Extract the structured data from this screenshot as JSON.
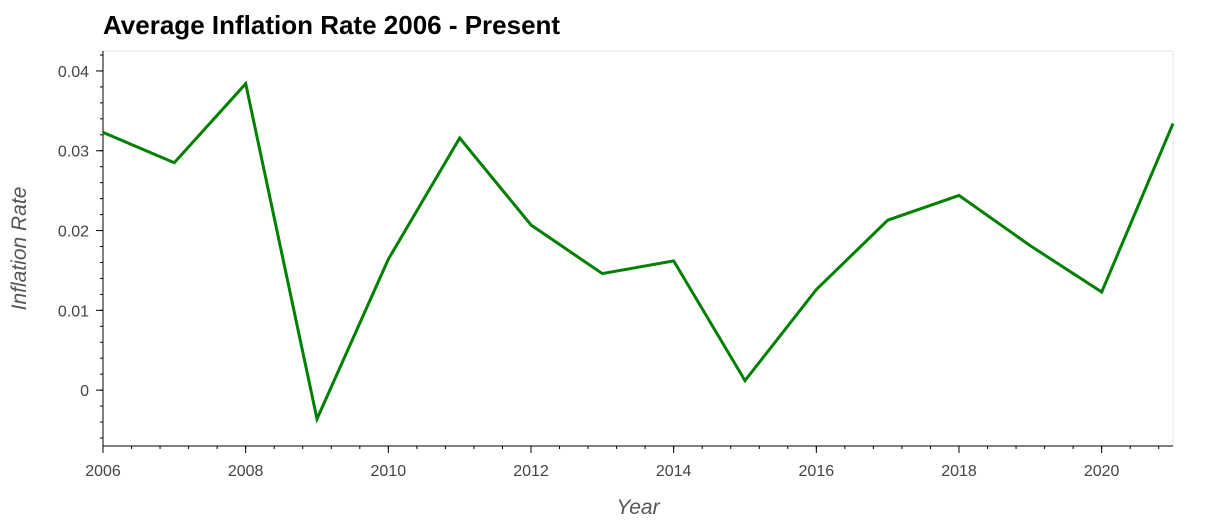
{
  "chart_data": {
    "type": "line",
    "title": "Average Inflation Rate 2006 - Present",
    "xlabel": "Year",
    "ylabel": "Inflation Rate",
    "xlim": [
      2006,
      2021
    ],
    "ylim": [
      -0.007,
      0.0425
    ],
    "x_ticks": [
      2006,
      2008,
      2010,
      2012,
      2014,
      2016,
      2018,
      2020
    ],
    "y_ticks": [
      0,
      0.01,
      0.02,
      0.03,
      0.04
    ],
    "y_tick_labels": [
      "0",
      "0.01",
      "0.02",
      "0.03",
      "0.04"
    ],
    "grid": false,
    "series": [
      {
        "color": "#008000",
        "x": [
          2006,
          2007,
          2008,
          2009,
          2010,
          2011,
          2012,
          2013,
          2014,
          2015,
          2016,
          2017,
          2018,
          2019,
          2020,
          2021
        ],
        "y": [
          0.0323,
          0.0285,
          0.0384,
          -0.0036,
          0.0164,
          0.0316,
          0.0207,
          0.0146,
          0.0162,
          0.0012,
          0.0126,
          0.0213,
          0.0244,
          0.0181,
          0.0123,
          0.0334
        ]
      }
    ]
  }
}
